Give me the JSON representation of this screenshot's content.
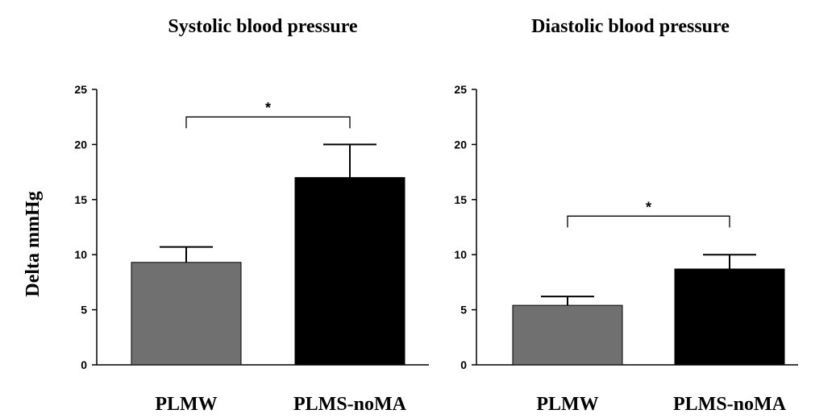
{
  "ylabel": "Delta mmHg",
  "chart_data": [
    {
      "type": "bar",
      "title": "Systolic blood pressure",
      "categories": [
        "PLMW",
        "PLMS-noMA"
      ],
      "values": [
        9.3,
        17.0
      ],
      "errors": [
        1.4,
        3.0
      ],
      "colors": [
        "#707070",
        "#000000"
      ],
      "ylim": [
        0,
        25
      ],
      "yticks": [
        0,
        5,
        10,
        15,
        20,
        25
      ],
      "significance": {
        "from": 0,
        "to": 1,
        "level": 22.5,
        "label": "*"
      }
    },
    {
      "type": "bar",
      "title": "Diastolic blood pressure",
      "categories": [
        "PLMW",
        "PLMS-noMA"
      ],
      "values": [
        5.4,
        8.7
      ],
      "errors": [
        0.8,
        1.3
      ],
      "colors": [
        "#707070",
        "#000000"
      ],
      "ylim": [
        0,
        25
      ],
      "yticks": [
        0,
        5,
        10,
        15,
        20,
        25
      ],
      "significance": {
        "from": 0,
        "to": 1,
        "level": 13.5,
        "label": "*"
      }
    }
  ]
}
